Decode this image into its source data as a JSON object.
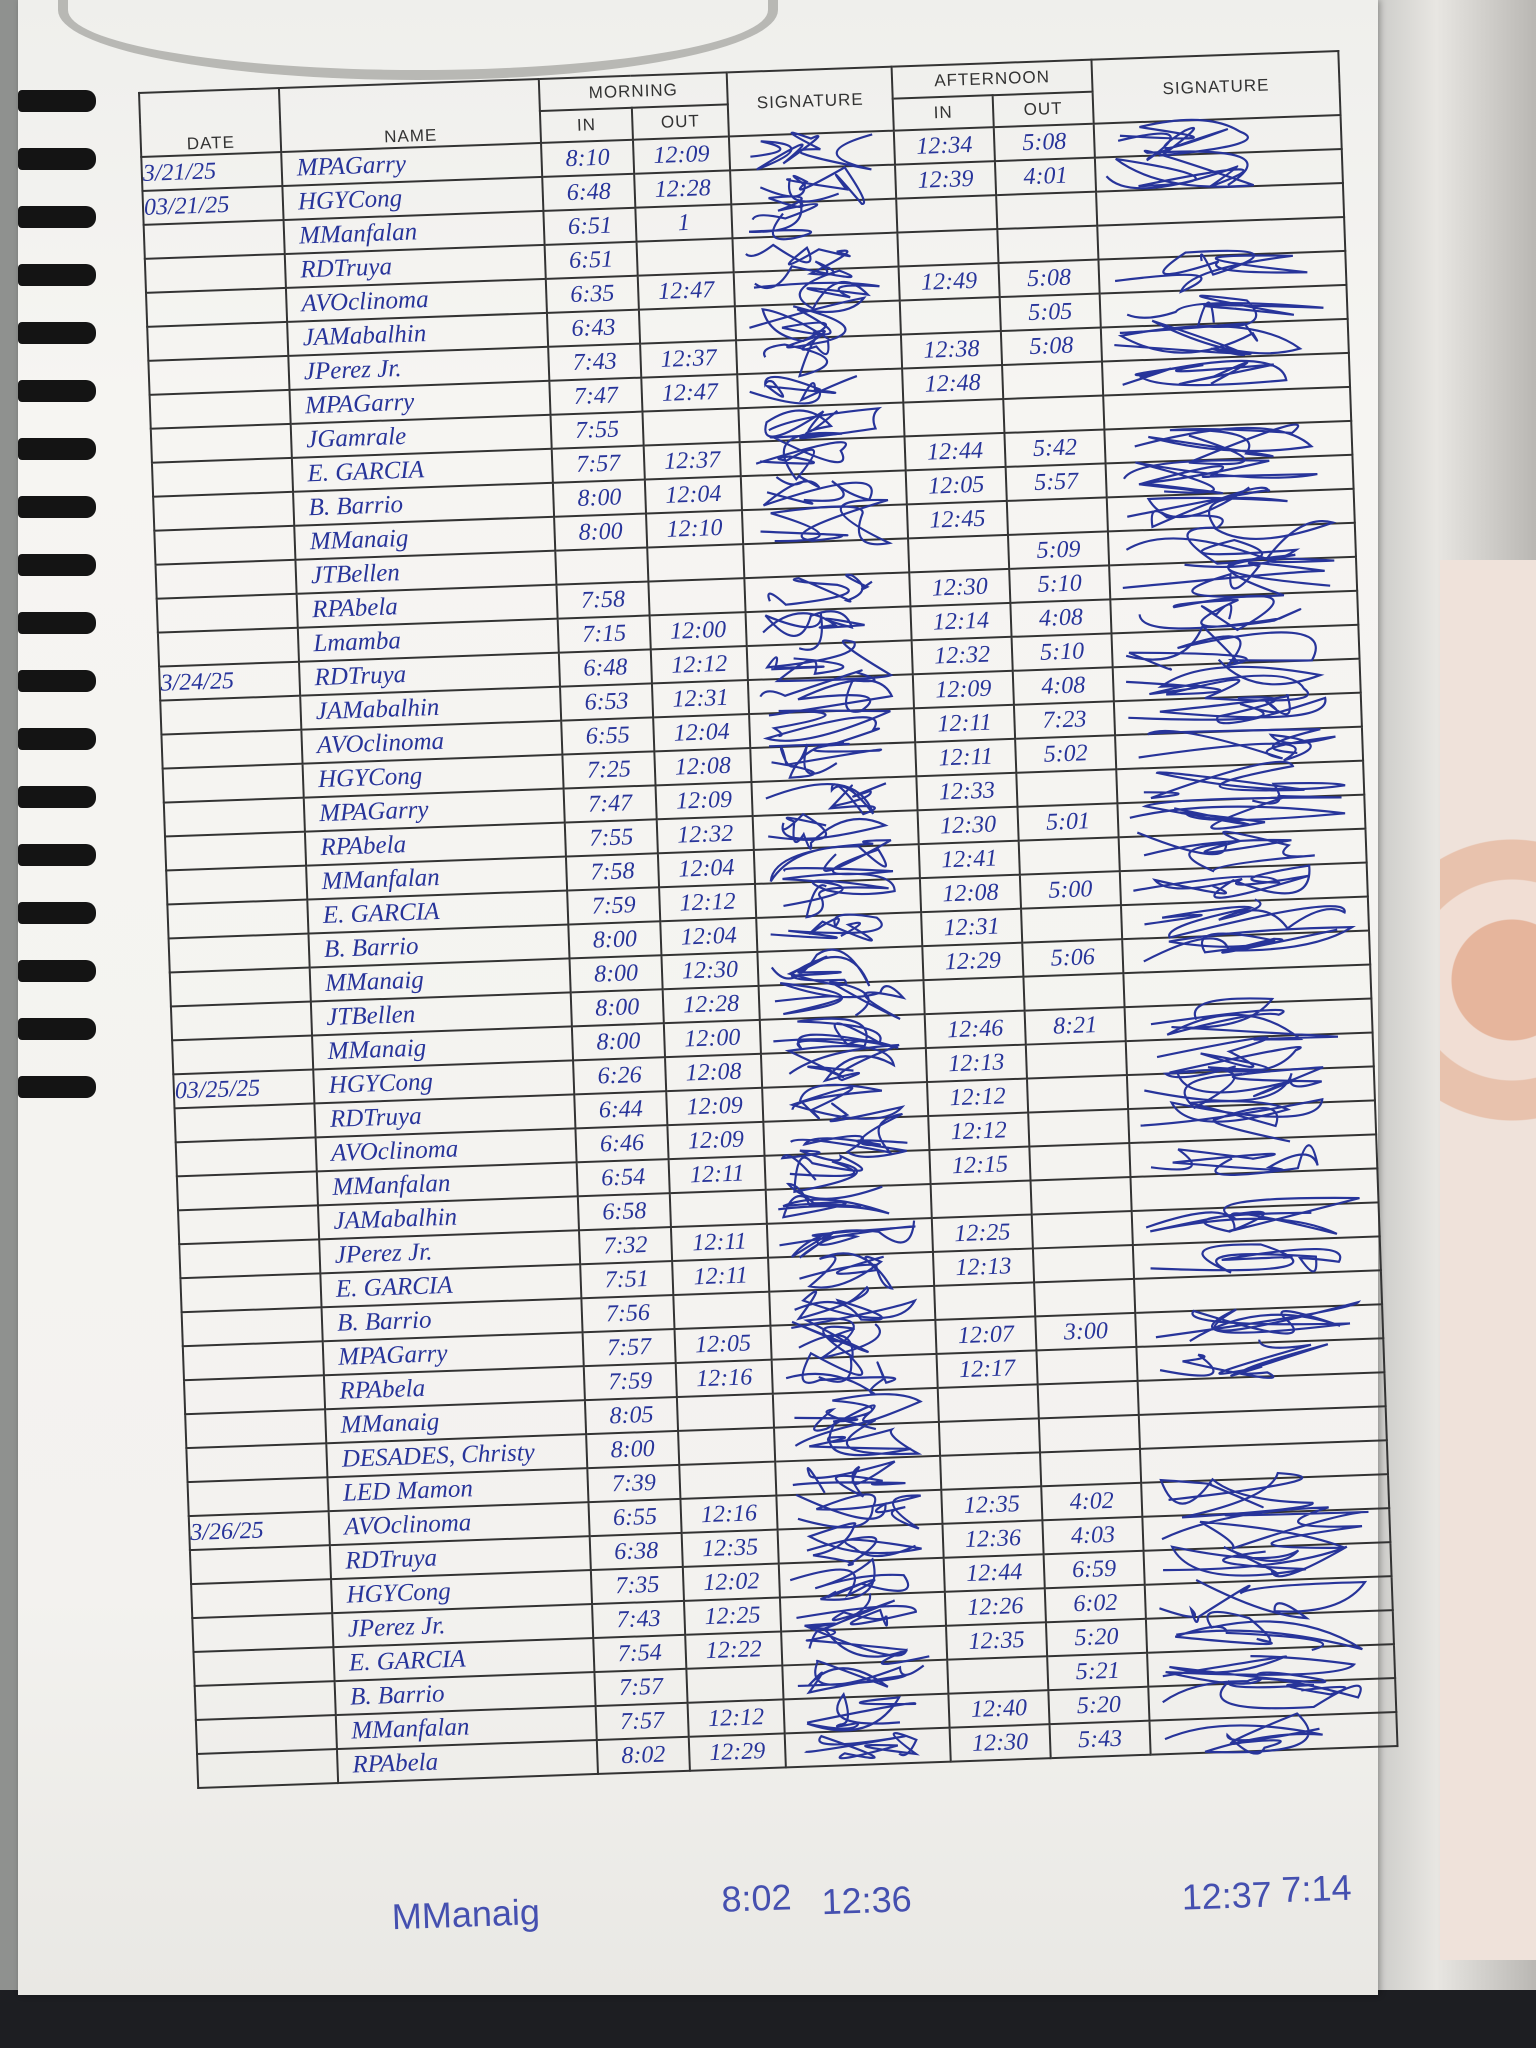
{
  "header": {
    "date": "DATE",
    "name": "NAME",
    "morning": "MORNING",
    "afternoon": "AFTERNOON",
    "in": "IN",
    "out": "OUT",
    "signature": "SIGNATURE"
  },
  "ink_color": "#27349a",
  "rows": [
    {
      "date": "3/21/25",
      "name": "MPAGarry",
      "am_in": "8:10",
      "am_out": "12:09",
      "pm_in": "12:34",
      "pm_out": "5:08"
    },
    {
      "date": "03/21/25",
      "name": "HGYCong",
      "am_in": "6:48",
      "am_out": "12:28",
      "pm_in": "12:39",
      "pm_out": "4:01"
    },
    {
      "date": "",
      "name": "MManfalan",
      "am_in": "6:51",
      "am_out": "1",
      "pm_in": "",
      "pm_out": ""
    },
    {
      "date": "",
      "name": "RDTruya",
      "am_in": "6:51",
      "am_out": "",
      "pm_in": "",
      "pm_out": ""
    },
    {
      "date": "",
      "name": "AVOclinoma",
      "am_in": "6:35",
      "am_out": "12:47",
      "pm_in": "12:49",
      "pm_out": "5:08"
    },
    {
      "date": "",
      "name": "JAMabalhin",
      "am_in": "6:43",
      "am_out": "",
      "pm_in": "",
      "pm_out": "5:05"
    },
    {
      "date": "",
      "name": "JPerez Jr.",
      "am_in": "7:43",
      "am_out": "12:37",
      "pm_in": "12:38",
      "pm_out": "5:08"
    },
    {
      "date": "",
      "name": "MPAGarry",
      "am_in": "7:47",
      "am_out": "12:47",
      "pm_in": "12:48",
      "pm_out": ""
    },
    {
      "date": "",
      "name": "JGamrale",
      "am_in": "7:55",
      "am_out": "",
      "pm_in": "",
      "pm_out": ""
    },
    {
      "date": "",
      "name": "E. GARCIA",
      "am_in": "7:57",
      "am_out": "12:37",
      "pm_in": "12:44",
      "pm_out": "5:42"
    },
    {
      "date": "",
      "name": "B. Barrio",
      "am_in": "8:00",
      "am_out": "12:04",
      "pm_in": "12:05",
      "pm_out": "5:57"
    },
    {
      "date": "",
      "name": "MManaig",
      "am_in": "8:00",
      "am_out": "12:10",
      "pm_in": "12:45",
      "pm_out": ""
    },
    {
      "date": "",
      "name": "JTBellen",
      "am_in": "",
      "am_out": "",
      "pm_in": "",
      "pm_out": "5:09"
    },
    {
      "date": "",
      "name": "RPAbela",
      "am_in": "7:58",
      "am_out": "",
      "pm_in": "12:30",
      "pm_out": "5:10"
    },
    {
      "date": "",
      "name": "Lmamba",
      "am_in": "7:15",
      "am_out": "12:00",
      "pm_in": "12:14",
      "pm_out": "4:08"
    },
    {
      "date": "3/24/25",
      "name": "RDTruya",
      "am_in": "6:48",
      "am_out": "12:12",
      "pm_in": "12:32",
      "pm_out": "5:10"
    },
    {
      "date": "",
      "name": "JAMabalhin",
      "am_in": "6:53",
      "am_out": "12:31",
      "pm_in": "12:09",
      "pm_out": "4:08"
    },
    {
      "date": "",
      "name": "AVOclinoma",
      "am_in": "6:55",
      "am_out": "12:04",
      "pm_in": "12:11",
      "pm_out": "7:23"
    },
    {
      "date": "",
      "name": "HGYCong",
      "am_in": "7:25",
      "am_out": "12:08",
      "pm_in": "12:11",
      "pm_out": "5:02"
    },
    {
      "date": "",
      "name": "MPAGarry",
      "am_in": "7:47",
      "am_out": "12:09",
      "pm_in": "12:33",
      "pm_out": ""
    },
    {
      "date": "",
      "name": "RPAbela",
      "am_in": "7:55",
      "am_out": "12:32",
      "pm_in": "12:30",
      "pm_out": "5:01"
    },
    {
      "date": "",
      "name": "MManfalan",
      "am_in": "7:58",
      "am_out": "12:04",
      "pm_in": "12:41",
      "pm_out": ""
    },
    {
      "date": "",
      "name": "E. GARCIA",
      "am_in": "7:59",
      "am_out": "12:12",
      "pm_in": "12:08",
      "pm_out": "5:00"
    },
    {
      "date": "",
      "name": "B. Barrio",
      "am_in": "8:00",
      "am_out": "12:04",
      "pm_in": "12:31",
      "pm_out": ""
    },
    {
      "date": "",
      "name": "MManaig",
      "am_in": "8:00",
      "am_out": "12:30",
      "pm_in": "12:29",
      "pm_out": "5:06"
    },
    {
      "date": "",
      "name": "JTBellen",
      "am_in": "8:00",
      "am_out": "12:28",
      "pm_in": "",
      "pm_out": ""
    },
    {
      "date": "",
      "name": "MManaig",
      "am_in": "8:00",
      "am_out": "12:00",
      "pm_in": "12:46",
      "pm_out": "8:21"
    },
    {
      "date": "03/25/25",
      "name": "HGYCong",
      "am_in": "6:26",
      "am_out": "12:08",
      "pm_in": "12:13",
      "pm_out": ""
    },
    {
      "date": "",
      "name": "RDTruya",
      "am_in": "6:44",
      "am_out": "12:09",
      "pm_in": "12:12",
      "pm_out": ""
    },
    {
      "date": "",
      "name": "AVOclinoma",
      "am_in": "6:46",
      "am_out": "12:09",
      "pm_in": "12:12",
      "pm_out": ""
    },
    {
      "date": "",
      "name": "MManfalan",
      "am_in": "6:54",
      "am_out": "12:11",
      "pm_in": "12:15",
      "pm_out": ""
    },
    {
      "date": "",
      "name": "JAMabalhin",
      "am_in": "6:58",
      "am_out": "",
      "pm_in": "",
      "pm_out": ""
    },
    {
      "date": "",
      "name": "JPerez Jr.",
      "am_in": "7:32",
      "am_out": "12:11",
      "pm_in": "12:25",
      "pm_out": ""
    },
    {
      "date": "",
      "name": "E. GARCIA",
      "am_in": "7:51",
      "am_out": "12:11",
      "pm_in": "12:13",
      "pm_out": ""
    },
    {
      "date": "",
      "name": "B. Barrio",
      "am_in": "7:56",
      "am_out": "",
      "pm_in": "",
      "pm_out": ""
    },
    {
      "date": "",
      "name": "MPAGarry",
      "am_in": "7:57",
      "am_out": "12:05",
      "pm_in": "12:07",
      "pm_out": "3:00"
    },
    {
      "date": "",
      "name": "RPAbela",
      "am_in": "7:59",
      "am_out": "12:16",
      "pm_in": "12:17",
      "pm_out": ""
    },
    {
      "date": "",
      "name": "MManaig",
      "am_in": "8:05",
      "am_out": "",
      "pm_in": "",
      "pm_out": ""
    },
    {
      "date": "",
      "name": "DESADES, Christy",
      "am_in": "8:00",
      "am_out": "",
      "pm_in": "",
      "pm_out": ""
    },
    {
      "date": "",
      "name": "LED Mamon",
      "am_in": "7:39",
      "am_out": "",
      "pm_in": "",
      "pm_out": ""
    },
    {
      "date": "3/26/25",
      "name": "AVOclinoma",
      "am_in": "6:55",
      "am_out": "12:16",
      "pm_in": "12:35",
      "pm_out": "4:02"
    },
    {
      "date": "",
      "name": "RDTruya",
      "am_in": "6:38",
      "am_out": "12:35",
      "pm_in": "12:36",
      "pm_out": "4:03"
    },
    {
      "date": "",
      "name": "HGYCong",
      "am_in": "7:35",
      "am_out": "12:02",
      "pm_in": "12:44",
      "pm_out": "6:59"
    },
    {
      "date": "",
      "name": "JPerez Jr.",
      "am_in": "7:43",
      "am_out": "12:25",
      "pm_in": "12:26",
      "pm_out": "6:02"
    },
    {
      "date": "",
      "name": "E. GARCIA",
      "am_in": "7:54",
      "am_out": "12:22",
      "pm_in": "12:35",
      "pm_out": "5:20"
    },
    {
      "date": "",
      "name": "B. Barrio",
      "am_in": "7:57",
      "am_out": "",
      "pm_in": "",
      "pm_out": "5:21"
    },
    {
      "date": "",
      "name": "MManfalan",
      "am_in": "7:57",
      "am_out": "12:12",
      "pm_in": "12:40",
      "pm_out": "5:20"
    },
    {
      "date": "",
      "name": "RPAbela",
      "am_in": "8:02",
      "am_out": "12:29",
      "pm_in": "12:30",
      "pm_out": "5:43"
    }
  ],
  "below_table": {
    "name": "MManaig",
    "am_in": "8:02",
    "am_out": "12:36",
    "pm_in": "12:37",
    "pm_out": "7:14"
  }
}
